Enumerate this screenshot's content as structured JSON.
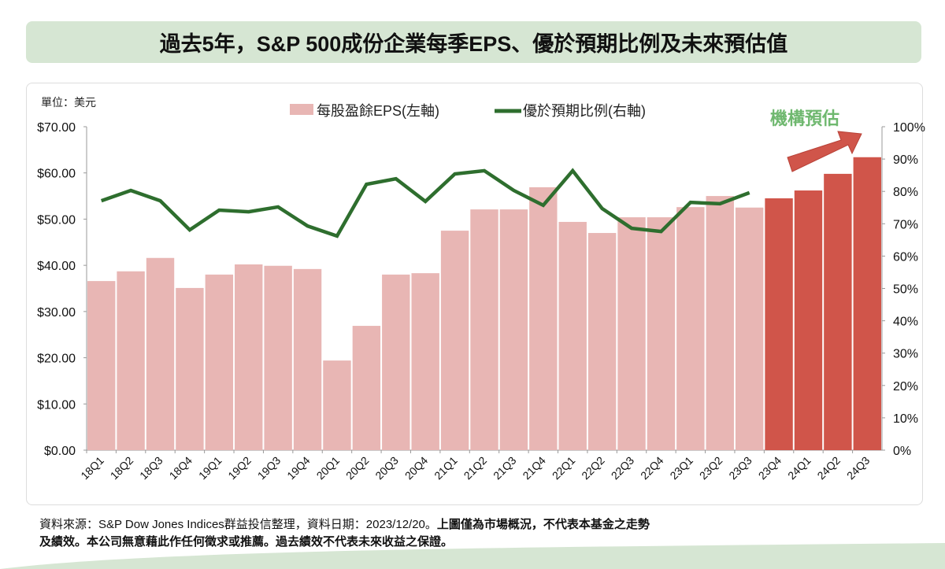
{
  "title": "過去5年，S&P 500成份企業每季EPS、優於預期比例及未來預估值",
  "unit_label": "單位：美元",
  "forecast_label": "機構預估",
  "footer": {
    "line1_normal": "資料來源：S&P Dow Jones Indices群益投信整理，資料日期：2023/12/20。",
    "line1_bold": "上圖僅為市場概況，不代表本基金之走勢",
    "line2_bold": "及績效。本公司無意藉此作任何徵求或推薦。過去績效不代表未來收益之保證。"
  },
  "chart_data": {
    "type": "bar+line",
    "title": "過去5年，S&P 500成份企業每季EPS、優於預期比例及未來預估值",
    "categories": [
      "18Q1",
      "18Q2",
      "18Q3",
      "18Q4",
      "19Q1",
      "19Q2",
      "19Q3",
      "19Q4",
      "20Q1",
      "20Q2",
      "20Q3",
      "20Q4",
      "21Q1",
      "21Q2",
      "21Q3",
      "21Q4",
      "22Q1",
      "22Q2",
      "22Q3",
      "22Q4",
      "23Q1",
      "23Q2",
      "23Q3",
      "23Q4",
      "24Q1",
      "24Q2",
      "24Q3"
    ],
    "series": [
      {
        "name": "每股盈餘EPS(左軸)",
        "type": "bar",
        "axis": "left",
        "color": "#e8b6b4",
        "forecast_color": "#d0554a",
        "forecast_from_index": 23,
        "values": [
          36.6,
          38.7,
          41.6,
          35.1,
          38.0,
          40.2,
          39.9,
          39.2,
          19.4,
          26.9,
          38.0,
          38.3,
          47.5,
          52.1,
          52.1,
          56.9,
          49.4,
          47.0,
          50.4,
          50.4,
          52.6,
          55.0,
          52.5,
          54.5,
          56.2,
          59.8,
          63.4
        ]
      },
      {
        "name": "優於預期比例(右軸)",
        "type": "line",
        "axis": "right",
        "color": "#2e6e2e",
        "values": [
          77.1,
          80.3,
          77.1,
          68.1,
          74.2,
          73.7,
          75.2,
          69.3,
          66.2,
          82.2,
          83.9,
          76.9,
          85.4,
          86.4,
          80.3,
          75.7,
          86.4,
          74.7,
          68.6,
          67.6,
          76.6,
          76.2,
          79.6,
          null,
          null,
          null,
          null
        ]
      }
    ],
    "left_axis": {
      "ylim": [
        0,
        70
      ],
      "ticks": [
        "$0.00",
        "$10.00",
        "$20.00",
        "$30.00",
        "$40.00",
        "$50.00",
        "$60.00",
        "$70.00"
      ]
    },
    "right_axis": {
      "ylim": [
        0,
        100
      ],
      "ticks": [
        "0%",
        "10%",
        "20%",
        "30%",
        "40%",
        "50%",
        "60%",
        "70%",
        "80%",
        "90%",
        "100%"
      ]
    },
    "legend": "top-center",
    "grid": false
  }
}
